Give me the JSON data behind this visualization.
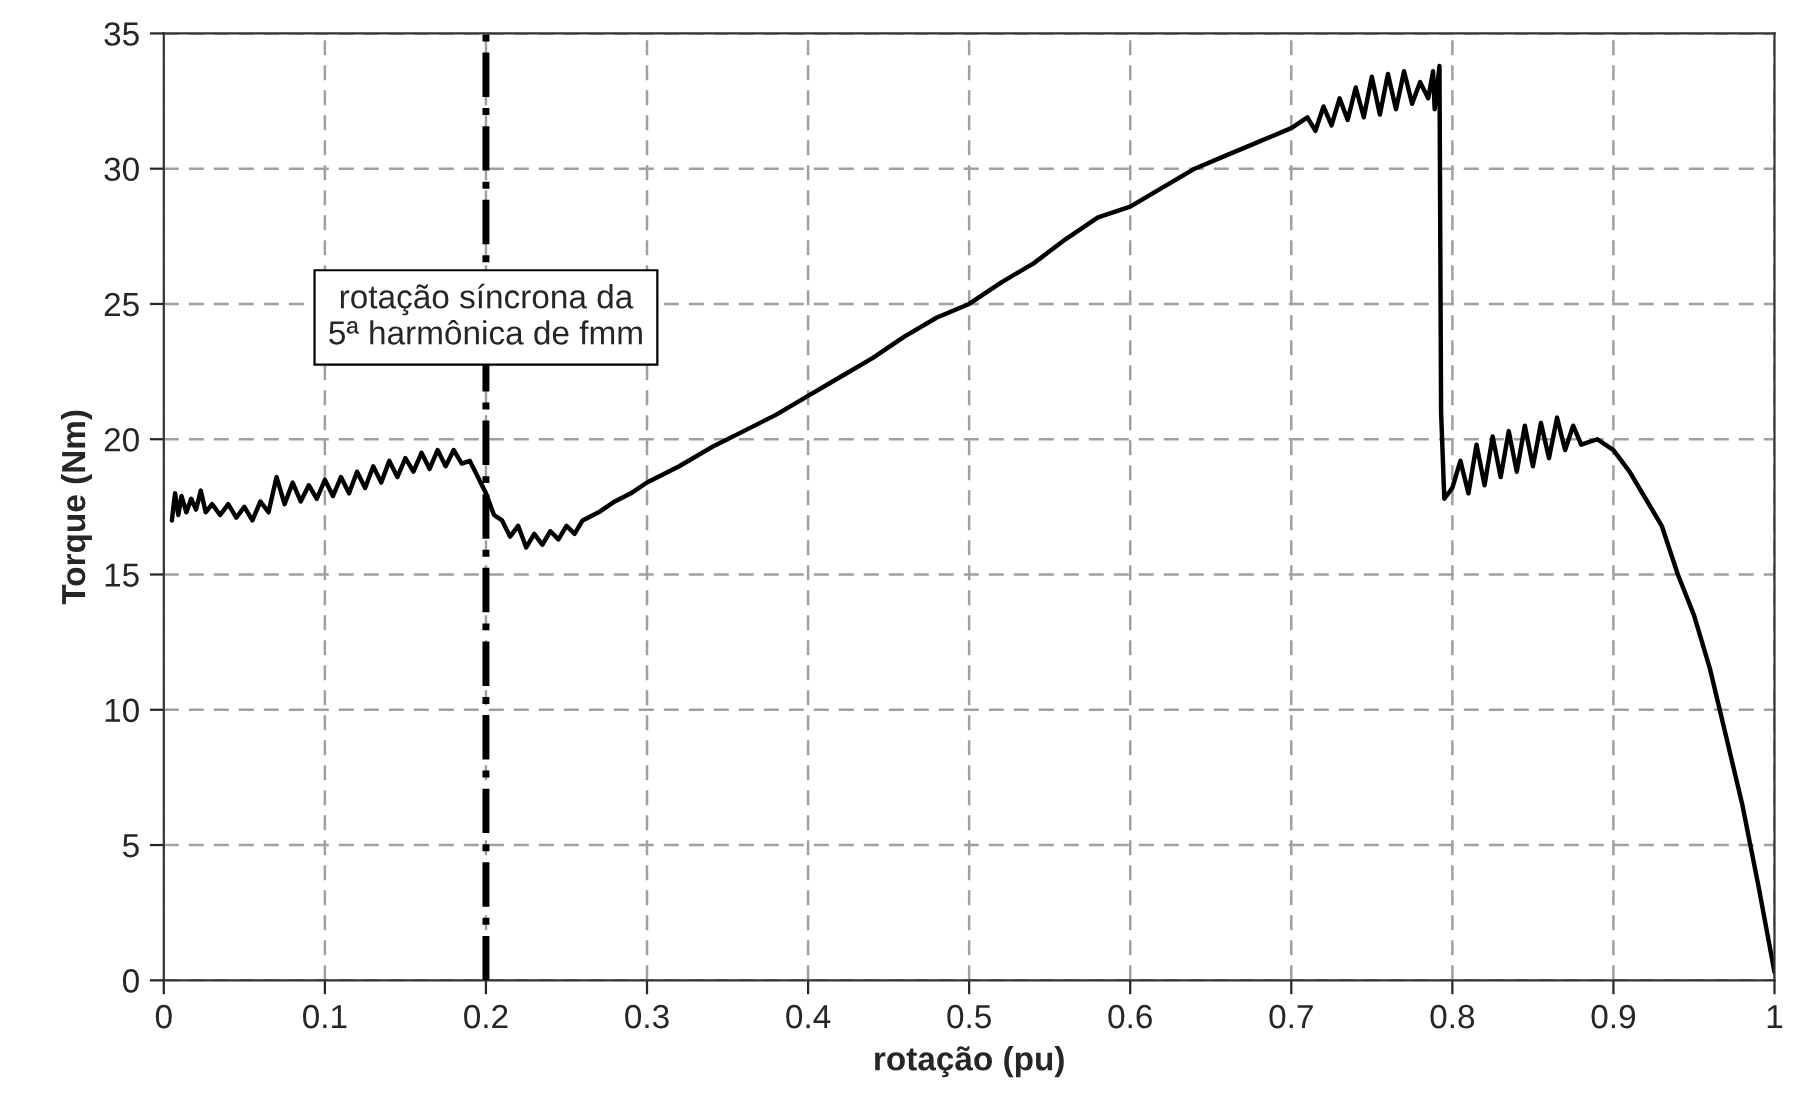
{
  "chart_data": {
    "type": "line",
    "xlabel": "rotação (pu)",
    "ylabel": "Torque (Nm)",
    "xlim": [
      0,
      1
    ],
    "ylim": [
      0,
      35
    ],
    "xticks": [
      0,
      0.1,
      0.2,
      0.3,
      0.4,
      0.5,
      0.6,
      0.7,
      0.8,
      0.9,
      1
    ],
    "yticks": [
      0,
      5,
      10,
      15,
      20,
      25,
      30,
      35
    ],
    "grid": true,
    "legend": false,
    "marker": "none",
    "line_style": "solid",
    "ref_lines": [
      {
        "axis": "x",
        "value": 0.2,
        "label": "rotação síncrona da\n5ª harmônica de fmm",
        "color": "#000000",
        "line_style": "dashdot"
      }
    ],
    "series": [
      {
        "color": "#000000",
        "x": [
          0.005,
          0.007,
          0.009,
          0.011,
          0.014,
          0.017,
          0.02,
          0.023,
          0.026,
          0.03,
          0.035,
          0.04,
          0.045,
          0.05,
          0.055,
          0.06,
          0.065,
          0.07,
          0.075,
          0.08,
          0.085,
          0.09,
          0.095,
          0.1,
          0.105,
          0.11,
          0.115,
          0.12,
          0.125,
          0.13,
          0.135,
          0.14,
          0.145,
          0.15,
          0.155,
          0.16,
          0.165,
          0.17,
          0.175,
          0.18,
          0.185,
          0.19,
          0.195,
          0.2,
          0.205,
          0.21,
          0.215,
          0.22,
          0.225,
          0.23,
          0.235,
          0.24,
          0.245,
          0.25,
          0.255,
          0.26,
          0.27,
          0.28,
          0.29,
          0.3,
          0.32,
          0.34,
          0.36,
          0.38,
          0.4,
          0.42,
          0.44,
          0.46,
          0.48,
          0.5,
          0.52,
          0.54,
          0.56,
          0.58,
          0.6,
          0.62,
          0.64,
          0.66,
          0.68,
          0.7,
          0.71,
          0.715,
          0.72,
          0.725,
          0.73,
          0.735,
          0.74,
          0.745,
          0.75,
          0.755,
          0.76,
          0.765,
          0.77,
          0.775,
          0.78,
          0.785,
          0.788,
          0.789,
          0.792,
          0.793,
          0.795,
          0.8,
          0.805,
          0.81,
          0.815,
          0.82,
          0.825,
          0.83,
          0.835,
          0.84,
          0.845,
          0.85,
          0.855,
          0.86,
          0.865,
          0.87,
          0.875,
          0.88,
          0.89,
          0.9,
          0.91,
          0.92,
          0.93,
          0.94,
          0.95,
          0.96,
          0.97,
          0.98,
          0.99,
          1.0
        ],
        "values": [
          17.0,
          18.0,
          17.2,
          17.9,
          17.3,
          17.8,
          17.4,
          18.1,
          17.3,
          17.6,
          17.2,
          17.6,
          17.1,
          17.5,
          17.0,
          17.7,
          17.3,
          18.6,
          17.6,
          18.4,
          17.7,
          18.3,
          17.8,
          18.5,
          17.9,
          18.6,
          18.0,
          18.8,
          18.2,
          19.0,
          18.4,
          19.2,
          18.6,
          19.3,
          18.8,
          19.5,
          18.9,
          19.6,
          19.0,
          19.6,
          19.1,
          19.2,
          18.6,
          18.0,
          17.2,
          17.0,
          16.4,
          16.8,
          16.0,
          16.5,
          16.1,
          16.6,
          16.3,
          16.8,
          16.5,
          17.0,
          17.3,
          17.7,
          18.0,
          18.4,
          19.0,
          19.7,
          20.3,
          20.9,
          21.6,
          22.3,
          23.0,
          23.8,
          24.5,
          25.0,
          25.8,
          26.5,
          27.4,
          28.2,
          28.6,
          29.3,
          30.0,
          30.5,
          31.0,
          31.5,
          31.9,
          31.4,
          32.3,
          31.6,
          32.6,
          31.8,
          33.0,
          31.9,
          33.4,
          32.0,
          33.5,
          32.2,
          33.6,
          32.4,
          33.2,
          32.6,
          33.6,
          32.2,
          33.8,
          21.0,
          17.8,
          18.2,
          19.2,
          18.0,
          19.8,
          18.3,
          20.1,
          18.6,
          20.3,
          18.8,
          20.5,
          19.0,
          20.6,
          19.3,
          20.8,
          19.6,
          20.5,
          19.8,
          20.0,
          19.6,
          18.8,
          17.8,
          16.8,
          15.0,
          13.5,
          11.5,
          9.0,
          6.5,
          3.5,
          0.3
        ]
      }
    ]
  }
}
